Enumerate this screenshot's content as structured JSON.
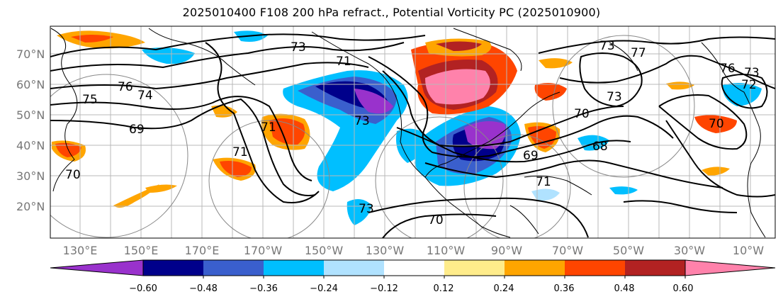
{
  "title": "2025010400 F108 200 hPa refract., Potential Vorticity PC (2025010900)",
  "lat_labels": [
    "70°N",
    "60°N",
    "50°N",
    "40°N",
    "30°N",
    "20°N"
  ],
  "lon_labels": [
    "130°E",
    "150°E",
    "170°E",
    "170°W",
    "150°W",
    "130°W",
    "110°W",
    "90°W",
    "70°W",
    "50°W",
    "30°W",
    "10°W"
  ],
  "colorbar": {
    "ticks": [
      "−0.60",
      "−0.48",
      "−0.36",
      "−0.24",
      "−0.12",
      "0.12",
      "0.24",
      "0.36",
      "0.48",
      "0.60"
    ],
    "colors": [
      "#9932CC",
      "#00008B",
      "#3A5FCD",
      "#00BFFF",
      "#B0E2FF",
      "#FFFFFF",
      "#FFEC8B",
      "#FFA500",
      "#FF4500",
      "#B22222",
      "#FF82AB"
    ]
  },
  "contour_labels": [
    "73",
    "71",
    "75",
    "76",
    "74",
    "69",
    "70",
    "71",
    "71",
    "73",
    "73",
    "70",
    "68",
    "69",
    "73",
    "72",
    "73",
    "71",
    "77",
    "76",
    "70",
    "73",
    "70"
  ]
}
